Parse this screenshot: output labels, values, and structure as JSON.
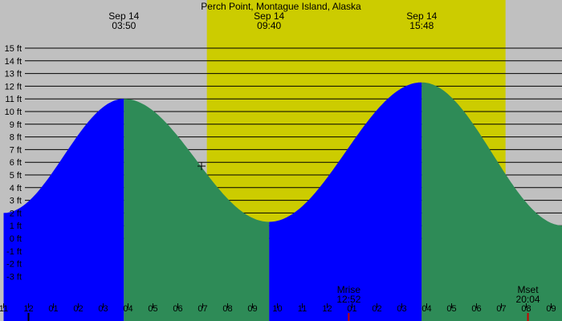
{
  "chart_data": {
    "type": "area",
    "title": "Perch Point, Montague Island, Alaska",
    "y_unit": "ft",
    "y_ticks": [
      -3,
      -2,
      -1,
      0,
      1,
      2,
      3,
      4,
      5,
      6,
      7,
      8,
      9,
      10,
      11,
      12,
      13,
      14,
      15
    ],
    "x_tick_labels": [
      "11",
      "12",
      "01",
      "02",
      "03",
      "04",
      "05",
      "06",
      "07",
      "08",
      "09",
      "10",
      "11",
      "12",
      "01",
      "02",
      "03",
      "04",
      "05",
      "06",
      "07",
      "08",
      "09"
    ],
    "events": [
      {
        "date": "Sep 14",
        "time": "03:50",
        "type": "high",
        "height_ft": 11.0
      },
      {
        "date": "Sep 14",
        "time": "09:40",
        "type": "low",
        "height_ft": 1.3
      },
      {
        "date": "Sep 14",
        "time": "15:48",
        "type": "high",
        "height_ft": 12.3
      }
    ],
    "curve": [
      {
        "time": "23:00",
        "height_ft": 2.0
      },
      {
        "time": "03:50",
        "height_ft": 11.0
      },
      {
        "time": "09:40",
        "height_ft": 1.3
      },
      {
        "time": "15:48",
        "height_ft": 12.3
      },
      {
        "time": "21:30",
        "height_ft": 1.0
      }
    ],
    "daylight": {
      "start": "07:10",
      "end": "19:10"
    },
    "moon": [
      {
        "label": "Mrise",
        "time": "12:52"
      },
      {
        "label": "Mset",
        "time": "20:04"
      }
    ],
    "colors": {
      "night": "#c0c0c0",
      "day": "#cccc00",
      "rising": "#0000ff",
      "falling": "#2e8b57",
      "grid": "#000000"
    }
  }
}
